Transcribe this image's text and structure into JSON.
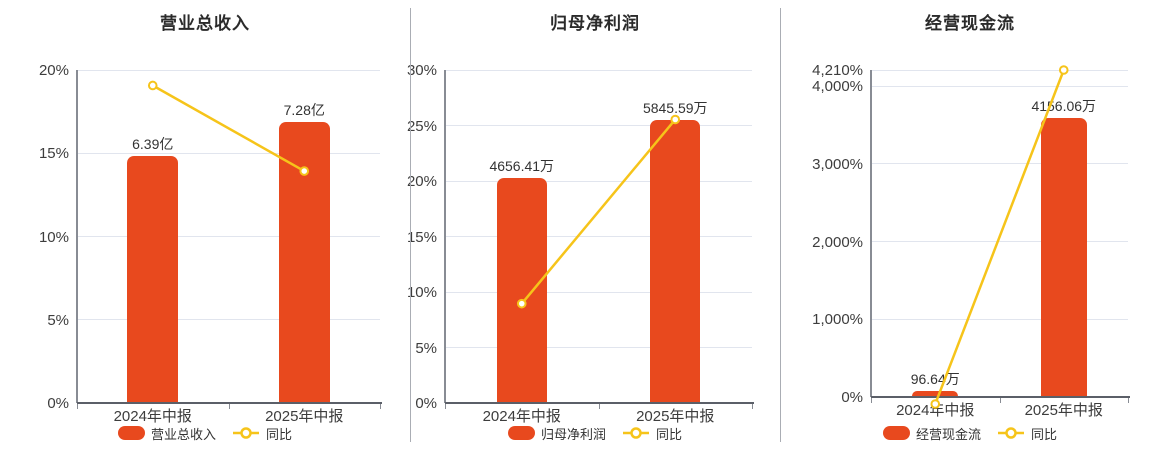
{
  "colors": {
    "bar": "#e8491e",
    "line": "#f6c41a",
    "marker_fill": "#ffffff",
    "grid": "#e1e5ee",
    "axis_x": "#5b5f68",
    "axis_y": "#888c94",
    "text": "#3d3d3d",
    "title": "#2b2b2b",
    "divider": "#aaadb4"
  },
  "chart_data": [
    {
      "type": "bar",
      "title": "营业总收入",
      "categories": [
        "2024年中报",
        "2025年中报"
      ],
      "bar_series": {
        "name": "营业总收入",
        "unit": "亿",
        "values": [
          6.39,
          7.28
        ],
        "labels": [
          "6.39亿",
          "7.28亿"
        ]
      },
      "line_series": {
        "name": "同比",
        "values_pct": [
          19.07,
          13.93
        ]
      },
      "y_axis": {
        "tick_labels": [
          "0%",
          "5%",
          "10%",
          "15%",
          "20%"
        ],
        "tick_values": [
          0,
          5,
          10,
          15,
          20
        ],
        "min": 0,
        "max": 20,
        "grid": true
      },
      "legend": [
        "营业总收入",
        "同比"
      ],
      "bar_axis_max": 8.62,
      "legend_position": "bottom"
    },
    {
      "type": "bar",
      "title": "归母净利润",
      "categories": [
        "2024年中报",
        "2025年中报"
      ],
      "bar_series": {
        "name": "归母净利润",
        "unit": "万",
        "values": [
          4656.41,
          5845.59
        ],
        "labels": [
          "4656.41万",
          "5845.59万"
        ]
      },
      "line_series": {
        "name": "同比",
        "values_pct": [
          8.95,
          25.54
        ]
      },
      "y_axis": {
        "tick_labels": [
          "0%",
          "5%",
          "10%",
          "15%",
          "20%",
          "25%",
          "30%"
        ],
        "tick_values": [
          0,
          5,
          10,
          15,
          20,
          25,
          30
        ],
        "min": 0,
        "max": 30,
        "grid": true
      },
      "legend": [
        "归母净利润",
        "同比"
      ],
      "bar_axis_max": 6890,
      "legend_position": "bottom"
    },
    {
      "type": "bar",
      "title": "经营现金流",
      "categories": [
        "2024年中报",
        "2025年中报"
      ],
      "bar_series": {
        "name": "经营现金流",
        "unit": "万",
        "values": [
          96.64,
          4156.06
        ],
        "labels": [
          "96.64万",
          "4156.06万"
        ]
      },
      "line_series": {
        "name": "同比",
        "values_pct": [
          -90,
          4210
        ]
      },
      "y_axis": {
        "tick_labels": [
          "0%",
          "1,000%",
          "2,000%",
          "3,000%",
          "4,000%",
          "4,210%"
        ],
        "tick_values": [
          0,
          1000,
          2000,
          3000,
          4000,
          4210
        ],
        "min": 0,
        "max": 4210,
        "grid": true
      },
      "legend": [
        "经营现金流",
        "同比"
      ],
      "bar_axis_max": 4873,
      "legend_position": "bottom"
    }
  ]
}
